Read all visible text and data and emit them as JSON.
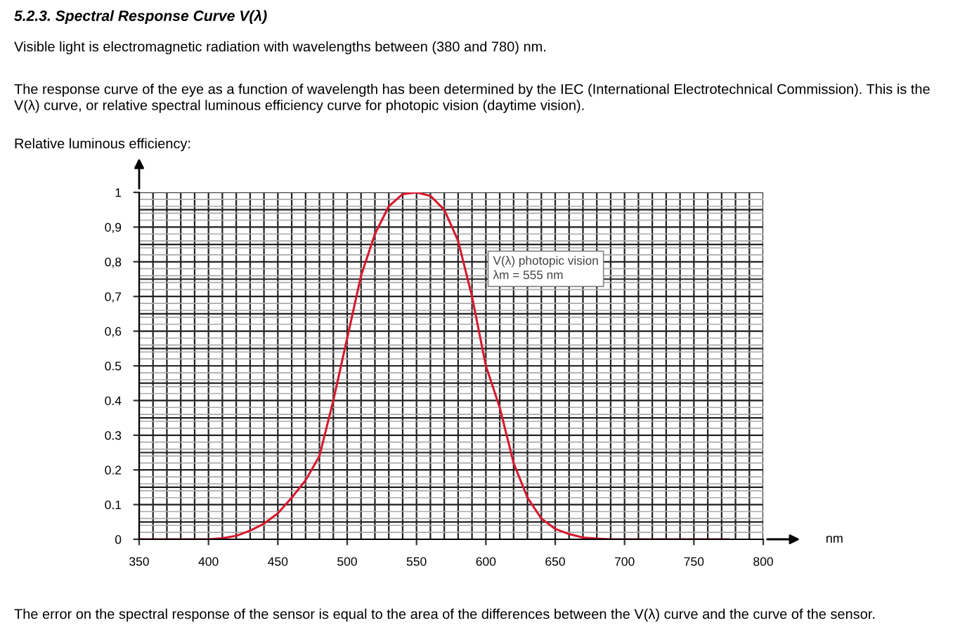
{
  "chart_data": {
    "type": "line",
    "title": "5.2.3. Spectral Response Curve V(λ)",
    "subtitle": "Visible light is electromagnetic radiation with wavelengths between (380 and 780) nm.",
    "ylabel": "Relative luminous efficiency:",
    "xlabel": "nm",
    "annotations": [
      "The response curve of the eye as a function of wavelength has been determined by the IEC (International Electrotechnical Commission). This is the V(λ) curve, or relative spectral luminous efficiency curve for photopic vision (daytime vision).",
      "V(λ) photopic vision\nλm = 555 nm",
      "The error on the spectral response of the sensor is equal to the area of the differences between the V(λ) curve and the curve of the sensor."
    ],
    "x": [
      350,
      380,
      400,
      410,
      420,
      430,
      440,
      450,
      460,
      470,
      480,
      490,
      500,
      510,
      520,
      530,
      540,
      550,
      560,
      570,
      580,
      590,
      600,
      610,
      620,
      630,
      640,
      650,
      660,
      670,
      680,
      690,
      700,
      775
    ],
    "series": [
      {
        "color": "#d7192e",
        "values": [
          0,
          0,
          0,
          0.003,
          0.01,
          0.025,
          0.045,
          0.075,
          0.12,
          0.17,
          0.24,
          0.4,
          0.58,
          0.76,
          0.88,
          0.96,
          0.995,
          1.0,
          0.99,
          0.95,
          0.86,
          0.7,
          0.5,
          0.38,
          0.22,
          0.12,
          0.06,
          0.03,
          0.015,
          0.005,
          0.002,
          0,
          0,
          0
        ]
      }
    ],
    "xlim": [
      350,
      800
    ],
    "xticks": [
      350,
      400,
      450,
      500,
      550,
      600,
      650,
      700,
      750,
      800
    ],
    "ylim": [
      0,
      1
    ],
    "yticks": [
      0,
      0.1,
      0.2,
      0.3,
      0.4,
      0.5,
      {
        "value": 0.6,
        "label": "0,6"
      },
      {
        "value": 0.7,
        "label": "0,7"
      },
      {
        "value": 0.8,
        "label": "0,8"
      },
      {
        "value": 0.9,
        "label": "0,9"
      },
      1
    ],
    "grid": true,
    "line_style": "solid",
    "marker": "none"
  }
}
